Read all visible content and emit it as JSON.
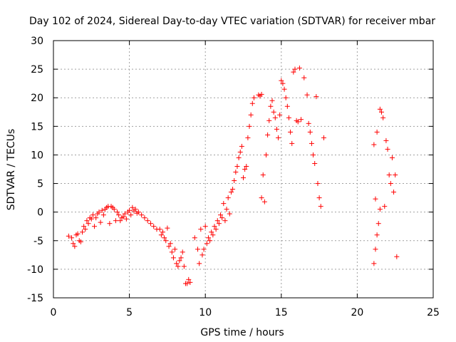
{
  "chart_data": {
    "type": "scatter",
    "title": "Day 102 of 2024, Sidereal Day-to-day VTEC variation (SDTVAR) for receiver mbar",
    "xlabel": "GPS time / hours",
    "ylabel": "SDTVAR / TECUs",
    "xlim": [
      0,
      25
    ],
    "ylim": [
      -15,
      30
    ],
    "x_ticks": [
      0,
      5,
      10,
      15,
      20,
      25
    ],
    "y_ticks": [
      -15,
      -10,
      -5,
      0,
      5,
      10,
      15,
      20,
      25,
      30
    ],
    "x_tick_labels": [
      "0",
      "5",
      "10",
      "15",
      "20",
      "25"
    ],
    "y_tick_labels": [
      "-15",
      "-10",
      "-5",
      "0",
      "5",
      "10",
      "15",
      "20",
      "25",
      "30"
    ],
    "grid": true,
    "marker": "+",
    "marker_color": "#ff0000",
    "series": [
      {
        "points": [
          [
            1.0,
            -4.2
          ],
          [
            1.2,
            -4.5
          ],
          [
            1.3,
            -5.5
          ],
          [
            1.4,
            -6.0
          ],
          [
            1.5,
            -4.0
          ],
          [
            1.6,
            -3.8
          ],
          [
            1.7,
            -5.0
          ],
          [
            1.8,
            -5.2
          ],
          [
            1.9,
            -3.5
          ],
          [
            2.0,
            -2.5
          ],
          [
            2.1,
            -3.0
          ],
          [
            2.2,
            -1.5
          ],
          [
            2.3,
            -2.0
          ],
          [
            2.4,
            -1.0
          ],
          [
            2.5,
            -1.2
          ],
          [
            2.6,
            -0.5
          ],
          [
            2.7,
            -2.5
          ],
          [
            2.8,
            -1.0
          ],
          [
            2.9,
            -0.3
          ],
          [
            3.0,
            0.0
          ],
          [
            3.1,
            -1.8
          ],
          [
            3.2,
            0.3
          ],
          [
            3.3,
            -0.5
          ],
          [
            3.4,
            0.5
          ],
          [
            3.5,
            0.8
          ],
          [
            3.6,
            1.0
          ],
          [
            3.7,
            -2.0
          ],
          [
            3.8,
            1.0
          ],
          [
            3.9,
            0.8
          ],
          [
            4.0,
            0.5
          ],
          [
            4.1,
            -1.5
          ],
          [
            4.2,
            0.0
          ],
          [
            4.3,
            -0.5
          ],
          [
            4.4,
            -1.5
          ],
          [
            4.5,
            -1.0
          ],
          [
            4.6,
            -0.8
          ],
          [
            4.7,
            -0.3
          ],
          [
            4.8,
            -1.2
          ],
          [
            4.9,
            0.0
          ],
          [
            5.0,
            0.3
          ],
          [
            5.1,
            -0.5
          ],
          [
            5.2,
            0.8
          ],
          [
            5.3,
            0.2
          ],
          [
            5.4,
            0.5
          ],
          [
            5.5,
            -0.2
          ],
          [
            5.6,
            0.0
          ],
          [
            5.8,
            -0.5
          ],
          [
            6.0,
            -1.0
          ],
          [
            6.2,
            -1.5
          ],
          [
            6.4,
            -2.0
          ],
          [
            6.6,
            -2.5
          ],
          [
            6.8,
            -3.0
          ],
          [
            7.0,
            -3.0
          ],
          [
            7.1,
            -4.0
          ],
          [
            7.2,
            -3.5
          ],
          [
            7.3,
            -4.5
          ],
          [
            7.4,
            -5.0
          ],
          [
            7.5,
            -2.8
          ],
          [
            7.6,
            -6.0
          ],
          [
            7.7,
            -5.5
          ],
          [
            7.8,
            -7.0
          ],
          [
            7.9,
            -8.0
          ],
          [
            8.0,
            -6.5
          ],
          [
            8.1,
            -9.0
          ],
          [
            8.2,
            -9.5
          ],
          [
            8.3,
            -8.5
          ],
          [
            8.4,
            -8.0
          ],
          [
            8.5,
            -7.0
          ],
          [
            8.6,
            -9.5
          ],
          [
            8.7,
            -12.5
          ],
          [
            8.8,
            -12.5
          ],
          [
            8.9,
            -11.8
          ],
          [
            9.0,
            -12.3
          ],
          [
            9.3,
            -4.5
          ],
          [
            9.5,
            -6.5
          ],
          [
            9.6,
            -9.0
          ],
          [
            9.7,
            -3.0
          ],
          [
            9.8,
            -7.5
          ],
          [
            9.9,
            -6.5
          ],
          [
            10.0,
            -2.5
          ],
          [
            10.1,
            -5.5
          ],
          [
            10.2,
            -4.5
          ],
          [
            10.3,
            -5.0
          ],
          [
            10.4,
            -3.5
          ],
          [
            10.5,
            -4.0
          ],
          [
            10.6,
            -2.5
          ],
          [
            10.7,
            -3.0
          ],
          [
            10.8,
            -1.5
          ],
          [
            10.9,
            -2.0
          ],
          [
            11.0,
            -0.5
          ],
          [
            11.1,
            -1.0
          ],
          [
            11.2,
            1.5
          ],
          [
            11.3,
            -1.5
          ],
          [
            11.4,
            0.5
          ],
          [
            11.5,
            2.5
          ],
          [
            11.6,
            -0.3
          ],
          [
            11.7,
            3.5
          ],
          [
            11.8,
            4.0
          ],
          [
            11.9,
            5.5
          ],
          [
            12.0,
            7.0
          ],
          [
            12.1,
            8.0
          ],
          [
            12.2,
            9.5
          ],
          [
            12.3,
            10.5
          ],
          [
            12.4,
            11.5
          ],
          [
            12.5,
            6.0
          ],
          [
            12.6,
            7.5
          ],
          [
            12.7,
            8.0
          ],
          [
            12.8,
            13.0
          ],
          [
            12.9,
            15.0
          ],
          [
            13.0,
            17.0
          ],
          [
            13.1,
            19.0
          ],
          [
            13.2,
            20.0
          ],
          [
            13.5,
            20.5
          ],
          [
            13.6,
            20.3
          ],
          [
            13.7,
            20.6
          ],
          [
            13.7,
            2.5
          ],
          [
            13.8,
            6.5
          ],
          [
            13.9,
            1.8
          ],
          [
            14.0,
            10.0
          ],
          [
            14.1,
            13.5
          ],
          [
            14.2,
            16.0
          ],
          [
            14.3,
            18.5
          ],
          [
            14.4,
            19.5
          ],
          [
            14.5,
            17.5
          ],
          [
            14.6,
            16.5
          ],
          [
            14.7,
            14.5
          ],
          [
            14.8,
            13.0
          ],
          [
            14.9,
            17.0
          ],
          [
            15.0,
            23.0
          ],
          [
            15.1,
            22.5
          ],
          [
            15.2,
            21.5
          ],
          [
            15.3,
            20.0
          ],
          [
            15.4,
            18.5
          ],
          [
            15.5,
            16.5
          ],
          [
            15.6,
            14.0
          ],
          [
            15.7,
            12.0
          ],
          [
            15.8,
            24.5
          ],
          [
            15.9,
            25.0
          ],
          [
            16.0,
            16.0
          ],
          [
            16.1,
            15.8
          ],
          [
            16.2,
            25.2
          ],
          [
            16.3,
            16.2
          ],
          [
            16.5,
            23.5
          ],
          [
            16.7,
            20.5
          ],
          [
            16.8,
            15.5
          ],
          [
            16.9,
            14.0
          ],
          [
            17.0,
            12.0
          ],
          [
            17.1,
            10.0
          ],
          [
            17.2,
            8.5
          ],
          [
            17.3,
            20.2
          ],
          [
            17.4,
            5.0
          ],
          [
            17.5,
            2.5
          ],
          [
            17.6,
            1.0
          ],
          [
            17.8,
            13.0
          ],
          [
            21.1,
            -9.0
          ],
          [
            21.1,
            11.8
          ],
          [
            21.2,
            -6.5
          ],
          [
            21.2,
            2.3
          ],
          [
            21.3,
            -4.0
          ],
          [
            21.3,
            14.0
          ],
          [
            21.4,
            -2.0
          ],
          [
            21.5,
            0.5
          ],
          [
            21.5,
            18.0
          ],
          [
            21.6,
            17.5
          ],
          [
            21.7,
            16.5
          ],
          [
            21.8,
            1.0
          ],
          [
            21.9,
            12.5
          ],
          [
            22.0,
            11.0
          ],
          [
            22.1,
            6.5
          ],
          [
            22.2,
            5.0
          ],
          [
            22.3,
            9.5
          ],
          [
            22.4,
            3.5
          ],
          [
            22.5,
            6.5
          ],
          [
            22.6,
            -7.8
          ]
        ]
      }
    ]
  }
}
